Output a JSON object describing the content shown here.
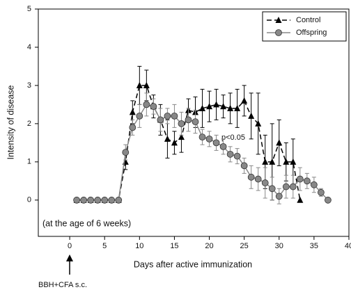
{
  "chart_data": {
    "type": "line",
    "xlabel": "Days after active immunization",
    "ylabel": "Intensity of disease",
    "annotations": [
      "p<0.05",
      "(at the age of 6 weeks)",
      "BBH+CFA s.c."
    ],
    "x": [
      1,
      2,
      3,
      4,
      5,
      6,
      7,
      8,
      9,
      10,
      11,
      12,
      13,
      14,
      15,
      16,
      17,
      18,
      19,
      20,
      21,
      22,
      23,
      24,
      25,
      26,
      27,
      28,
      29,
      30,
      31,
      32,
      33,
      34,
      35,
      36,
      37
    ],
    "series": [
      {
        "name": "Control",
        "color": "#000000",
        "marker": "triangle",
        "dash": true,
        "values": [
          0,
          0,
          0,
          0,
          0,
          0,
          0,
          1.0,
          2.3,
          3.0,
          3.0,
          2.45,
          2.1,
          1.6,
          1.5,
          1.65,
          2.35,
          2.3,
          2.4,
          2.45,
          2.5,
          2.45,
          2.4,
          2.4,
          2.6,
          2.2,
          2.0,
          1.0,
          1.0,
          1.5,
          1.0,
          1.0,
          0.0,
          null,
          null,
          null,
          null
        ],
        "errors": [
          null,
          null,
          null,
          null,
          null,
          null,
          null,
          0.2,
          0.3,
          0.5,
          0.4,
          0.3,
          0.4,
          0.5,
          0.3,
          0.4,
          0.3,
          0.4,
          0.5,
          0.4,
          0.4,
          0.3,
          0.4,
          0.5,
          0.4,
          0.6,
          0.8,
          0.7,
          1.0,
          0.6,
          0.5,
          0.6,
          null,
          null,
          null,
          null,
          null
        ]
      },
      {
        "name": "Offspring",
        "color": "#888888",
        "marker": "circle",
        "dash": false,
        "values": [
          0,
          0,
          0,
          0,
          0,
          0,
          0,
          1.25,
          1.9,
          2.2,
          2.5,
          2.45,
          2.1,
          2.2,
          2.2,
          2.0,
          2.1,
          2.05,
          1.65,
          1.6,
          1.5,
          1.4,
          1.2,
          1.15,
          0.9,
          0.6,
          0.55,
          0.45,
          0.3,
          0.1,
          0.35,
          0.35,
          0.55,
          0.5,
          0.4,
          0.2,
          0.0
        ],
        "errors": [
          null,
          null,
          null,
          null,
          null,
          null,
          null,
          0.2,
          0.2,
          0.3,
          0.3,
          0.2,
          0.3,
          0.2,
          0.3,
          0.3,
          0.3,
          0.3,
          0.2,
          0.2,
          0.2,
          0.2,
          0.2,
          0.2,
          0.2,
          0.3,
          0.3,
          0.4,
          0.3,
          0.2,
          0.3,
          0.3,
          0.3,
          0.2,
          0.2,
          0.1,
          null
        ]
      }
    ],
    "xlim": [
      -4.5,
      40
    ],
    "ylim": [
      -0.95,
      5
    ],
    "xticks": [
      0,
      5,
      10,
      15,
      20,
      25,
      30,
      35,
      40
    ],
    "yticks": [
      0,
      1,
      2,
      3,
      4,
      5
    ],
    "legend": "upper right"
  }
}
